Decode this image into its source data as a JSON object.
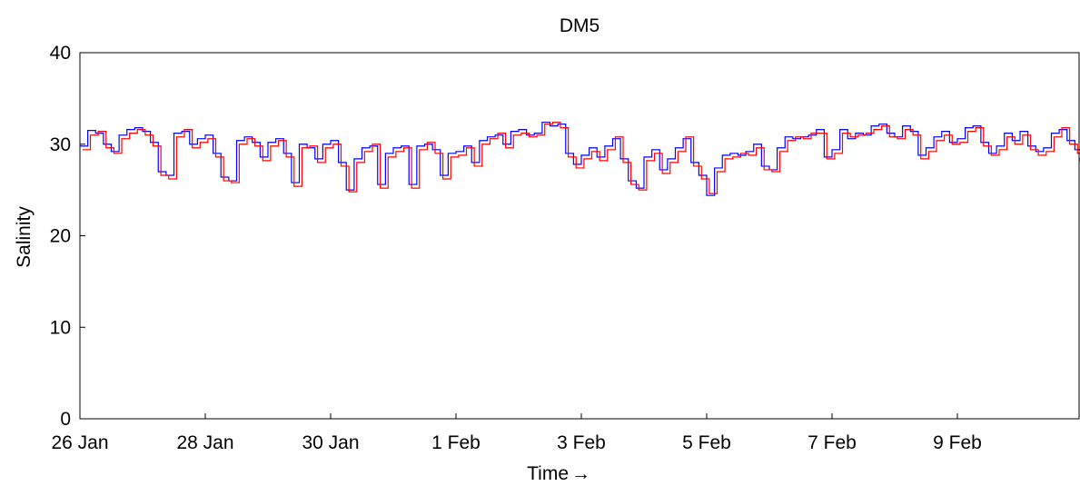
{
  "chart_data": {
    "type": "line",
    "title": "DM5",
    "xlabel": "Time",
    "xlabel_arrow": "→",
    "ylabel": "Salinity",
    "ylim": [
      0,
      40
    ],
    "yticks": [
      0,
      10,
      20,
      30,
      40
    ],
    "xlim": [
      "2000-01-26",
      "2000-02-11T22:00"
    ],
    "xticks": [
      {
        "date": "2000-01-26",
        "label": "26 Jan"
      },
      {
        "date": "2000-01-28",
        "label": "28 Jan"
      },
      {
        "date": "2000-01-30",
        "label": "30 Jan"
      },
      {
        "date": "2000-02-01",
        "label": "1 Feb"
      },
      {
        "date": "2000-02-03",
        "label": "3 Feb"
      },
      {
        "date": "2000-02-05",
        "label": "5 Feb"
      },
      {
        "date": "2000-02-07",
        "label": "7 Feb"
      },
      {
        "date": "2000-02-09",
        "label": "9 Feb"
      }
    ],
    "grid": false,
    "legend": "none",
    "series": [
      {
        "color": "#0000ff",
        "x": [
          "2000-01-26T00:00",
          "2000-01-26T03:00",
          "2000-01-26T06:00",
          "2000-01-26T09:00",
          "2000-01-26T12:00",
          "2000-01-26T15:00",
          "2000-01-26T18:00",
          "2000-01-26T21:00",
          "2000-01-27T00:00",
          "2000-01-27T03:00",
          "2000-01-27T06:00",
          "2000-01-27T09:00",
          "2000-01-27T12:00",
          "2000-01-27T15:00",
          "2000-01-27T18:00",
          "2000-01-27T21:00",
          "2000-01-28T00:00",
          "2000-01-28T03:00",
          "2000-01-28T06:00",
          "2000-01-28T09:00",
          "2000-01-28T12:00",
          "2000-01-28T15:00",
          "2000-01-28T18:00",
          "2000-01-28T21:00",
          "2000-01-29T00:00",
          "2000-01-29T03:00",
          "2000-01-29T06:00",
          "2000-01-29T09:00",
          "2000-01-29T12:00",
          "2000-01-29T15:00",
          "2000-01-29T18:00",
          "2000-01-29T21:00",
          "2000-01-30T00:00",
          "2000-01-30T03:00",
          "2000-01-30T06:00",
          "2000-01-30T09:00",
          "2000-01-30T12:00",
          "2000-01-30T15:00",
          "2000-01-30T18:00",
          "2000-01-30T21:00",
          "2000-01-31T00:00",
          "2000-01-31T03:00",
          "2000-01-31T06:00",
          "2000-01-31T09:00",
          "2000-01-31T12:00",
          "2000-01-31T15:00",
          "2000-01-31T18:00",
          "2000-01-31T21:00",
          "2000-02-01T00:00",
          "2000-02-01T03:00",
          "2000-02-01T06:00",
          "2000-02-01T09:00",
          "2000-02-01T12:00",
          "2000-02-01T15:00",
          "2000-02-01T18:00",
          "2000-02-01T21:00",
          "2000-02-02T00:00",
          "2000-02-02T03:00",
          "2000-02-02T06:00",
          "2000-02-02T09:00",
          "2000-02-02T12:00",
          "2000-02-02T15:00",
          "2000-02-02T18:00",
          "2000-02-02T21:00",
          "2000-02-03T00:00",
          "2000-02-03T03:00",
          "2000-02-03T06:00",
          "2000-02-03T09:00",
          "2000-02-03T12:00",
          "2000-02-03T15:00",
          "2000-02-03T18:00",
          "2000-02-03T21:00",
          "2000-02-04T00:00",
          "2000-02-04T03:00",
          "2000-02-04T06:00",
          "2000-02-04T09:00",
          "2000-02-04T12:00",
          "2000-02-04T15:00",
          "2000-02-04T18:00",
          "2000-02-04T21:00",
          "2000-02-05T00:00",
          "2000-02-05T03:00",
          "2000-02-05T06:00",
          "2000-02-05T09:00",
          "2000-02-05T12:00",
          "2000-02-05T15:00",
          "2000-02-05T18:00",
          "2000-02-05T21:00",
          "2000-02-06T00:00",
          "2000-02-06T03:00",
          "2000-02-06T06:00",
          "2000-02-06T09:00",
          "2000-02-06T12:00",
          "2000-02-06T15:00",
          "2000-02-06T18:00",
          "2000-02-06T21:00",
          "2000-02-07T00:00",
          "2000-02-07T03:00",
          "2000-02-07T06:00",
          "2000-02-07T09:00",
          "2000-02-07T12:00",
          "2000-02-07T15:00",
          "2000-02-07T18:00",
          "2000-02-07T21:00",
          "2000-02-08T00:00",
          "2000-02-08T03:00",
          "2000-02-08T06:00",
          "2000-02-08T09:00",
          "2000-02-08T12:00",
          "2000-02-08T15:00",
          "2000-02-08T18:00",
          "2000-02-08T21:00",
          "2000-02-09T00:00",
          "2000-02-09T03:00",
          "2000-02-09T06:00",
          "2000-02-09T09:00",
          "2000-02-09T12:00",
          "2000-02-09T15:00",
          "2000-02-09T18:00",
          "2000-02-09T21:00",
          "2000-02-10T00:00",
          "2000-02-10T03:00",
          "2000-02-10T06:00",
          "2000-02-10T09:00",
          "2000-02-10T12:00",
          "2000-02-10T15:00",
          "2000-02-10T18:00",
          "2000-02-10T21:00",
          "2000-02-11T00:00",
          "2000-02-11T03:00",
          "2000-02-11T06:00",
          "2000-02-11T09:00",
          "2000-02-11T12:00",
          "2000-02-11T15:00",
          "2000-02-11T18:00",
          "2000-02-11T21:00"
        ],
        "values": [
          29.8,
          31.5,
          31.2,
          30.0,
          29.2,
          31.0,
          31.6,
          31.8,
          31.4,
          30.2,
          27.0,
          26.6,
          31.2,
          31.4,
          30.0,
          30.6,
          31.0,
          29.0,
          26.4,
          26.0,
          30.4,
          30.8,
          30.2,
          28.6,
          30.2,
          30.6,
          29.0,
          25.8,
          30.0,
          29.6,
          28.4,
          30.0,
          30.4,
          28.0,
          25.0,
          28.4,
          29.6,
          29.8,
          25.6,
          29.0,
          29.6,
          29.8,
          25.6,
          29.8,
          30.0,
          29.4,
          26.6,
          29.0,
          29.2,
          29.8,
          28.0,
          30.4,
          30.8,
          31.0,
          30.0,
          31.4,
          31.6,
          31.0,
          31.2,
          32.4,
          32.0,
          32.2,
          29.0,
          27.8,
          28.8,
          29.6,
          28.6,
          29.8,
          30.6,
          28.4,
          26.0,
          25.2,
          28.6,
          29.4,
          27.2,
          28.4,
          29.6,
          30.6,
          28.0,
          26.6,
          24.4,
          27.4,
          28.8,
          29.0,
          28.8,
          29.2,
          30.0,
          27.6,
          27.2,
          29.6,
          30.8,
          30.6,
          30.8,
          31.0,
          31.6,
          28.6,
          29.4,
          31.6,
          30.6,
          31.2,
          31.0,
          32.0,
          32.2,
          31.2,
          30.8,
          32.0,
          31.4,
          28.8,
          29.6,
          30.8,
          31.4,
          30.2,
          30.6,
          31.8,
          32.0,
          30.2,
          29.0,
          29.8,
          31.2,
          30.4,
          31.4,
          29.8,
          29.2,
          29.6,
          31.2,
          31.6,
          30.4,
          29.4,
          30.2,
          31.2,
          31.8,
          31.0,
          30.8,
          30.4,
          30.0,
          28.4
        ]
      },
      {
        "color": "#ff0000",
        "x": [
          "2000-01-26T01:00",
          "2000-01-26T04:00",
          "2000-01-26T07:00",
          "2000-01-26T10:00",
          "2000-01-26T13:00",
          "2000-01-26T16:00",
          "2000-01-26T19:00",
          "2000-01-26T22:00",
          "2000-01-27T01:00",
          "2000-01-27T04:00",
          "2000-01-27T07:00",
          "2000-01-27T10:00",
          "2000-01-27T13:00",
          "2000-01-27T16:00",
          "2000-01-27T19:00",
          "2000-01-27T22:00",
          "2000-01-28T01:00",
          "2000-01-28T04:00",
          "2000-01-28T07:00",
          "2000-01-28T10:00",
          "2000-01-28T13:00",
          "2000-01-28T16:00",
          "2000-01-28T19:00",
          "2000-01-28T22:00",
          "2000-01-29T01:00",
          "2000-01-29T04:00",
          "2000-01-29T07:00",
          "2000-01-29T10:00",
          "2000-01-29T13:00",
          "2000-01-29T16:00",
          "2000-01-29T19:00",
          "2000-01-29T22:00",
          "2000-01-30T01:00",
          "2000-01-30T04:00",
          "2000-01-30T07:00",
          "2000-01-30T10:00",
          "2000-01-30T13:00",
          "2000-01-30T16:00",
          "2000-01-30T19:00",
          "2000-01-30T22:00",
          "2000-01-31T01:00",
          "2000-01-31T04:00",
          "2000-01-31T07:00",
          "2000-01-31T10:00",
          "2000-01-31T13:00",
          "2000-01-31T16:00",
          "2000-01-31T19:00",
          "2000-01-31T22:00",
          "2000-02-01T01:00",
          "2000-02-01T04:00",
          "2000-02-01T07:00",
          "2000-02-01T10:00",
          "2000-02-01T13:00",
          "2000-02-01T16:00",
          "2000-02-01T19:00",
          "2000-02-01T22:00",
          "2000-02-02T01:00",
          "2000-02-02T04:00",
          "2000-02-02T07:00",
          "2000-02-02T10:00",
          "2000-02-02T13:00",
          "2000-02-02T16:00",
          "2000-02-02T19:00",
          "2000-02-02T22:00",
          "2000-02-03T01:00",
          "2000-02-03T04:00",
          "2000-02-03T07:00",
          "2000-02-03T10:00",
          "2000-02-03T13:00",
          "2000-02-03T16:00",
          "2000-02-03T19:00",
          "2000-02-03T22:00",
          "2000-02-04T01:00",
          "2000-02-04T04:00",
          "2000-02-04T07:00",
          "2000-02-04T10:00",
          "2000-02-04T13:00",
          "2000-02-04T16:00",
          "2000-02-04T19:00",
          "2000-02-04T22:00",
          "2000-02-05T01:00",
          "2000-02-05T04:00",
          "2000-02-05T07:00",
          "2000-02-05T10:00",
          "2000-02-05T13:00",
          "2000-02-05T16:00",
          "2000-02-05T19:00",
          "2000-02-05T22:00",
          "2000-02-06T01:00",
          "2000-02-06T04:00",
          "2000-02-06T07:00",
          "2000-02-06T10:00",
          "2000-02-06T13:00",
          "2000-02-06T16:00",
          "2000-02-06T19:00",
          "2000-02-06T22:00",
          "2000-02-07T01:00",
          "2000-02-07T04:00",
          "2000-02-07T07:00",
          "2000-02-07T10:00",
          "2000-02-07T13:00",
          "2000-02-07T16:00",
          "2000-02-07T19:00",
          "2000-02-07T22:00",
          "2000-02-08T01:00",
          "2000-02-08T04:00",
          "2000-02-08T07:00",
          "2000-02-08T10:00",
          "2000-02-08T13:00",
          "2000-02-08T16:00",
          "2000-02-08T19:00",
          "2000-02-08T22:00",
          "2000-02-09T01:00",
          "2000-02-09T04:00",
          "2000-02-09T07:00",
          "2000-02-09T10:00",
          "2000-02-09T13:00",
          "2000-02-09T16:00",
          "2000-02-09T19:00",
          "2000-02-09T22:00",
          "2000-02-10T01:00",
          "2000-02-10T04:00",
          "2000-02-10T07:00",
          "2000-02-10T10:00",
          "2000-02-10T13:00",
          "2000-02-10T16:00",
          "2000-02-10T19:00",
          "2000-02-10T22:00",
          "2000-02-11T01:00",
          "2000-02-11T04:00",
          "2000-02-11T07:00",
          "2000-02-11T10:00",
          "2000-02-11T13:00",
          "2000-02-11T16:00",
          "2000-02-11T19:00",
          "2000-02-11T22:00"
        ],
        "values": [
          29.4,
          31.0,
          31.4,
          29.6,
          29.0,
          30.6,
          31.2,
          31.6,
          31.0,
          29.8,
          26.6,
          26.2,
          30.8,
          31.6,
          29.6,
          30.2,
          30.6,
          28.6,
          26.0,
          25.8,
          30.0,
          30.6,
          29.8,
          28.2,
          29.8,
          30.4,
          28.6,
          25.4,
          29.6,
          29.8,
          28.0,
          29.6,
          30.0,
          27.6,
          24.8,
          28.0,
          29.2,
          30.0,
          25.2,
          28.6,
          29.2,
          29.6,
          25.2,
          29.4,
          30.2,
          29.0,
          26.2,
          28.6,
          28.8,
          29.6,
          27.6,
          30.0,
          30.6,
          31.2,
          29.6,
          31.0,
          31.2,
          30.8,
          31.0,
          32.2,
          32.4,
          31.8,
          28.6,
          27.4,
          28.4,
          29.2,
          28.2,
          29.4,
          30.8,
          28.0,
          25.6,
          25.0,
          28.2,
          29.0,
          26.8,
          28.0,
          29.2,
          30.8,
          27.6,
          26.2,
          24.6,
          27.0,
          28.4,
          28.6,
          29.0,
          28.8,
          29.6,
          27.2,
          27.0,
          29.2,
          30.4,
          30.8,
          30.6,
          31.2,
          31.2,
          28.4,
          29.0,
          31.2,
          30.8,
          31.0,
          31.2,
          31.6,
          32.0,
          30.8,
          30.6,
          31.6,
          31.0,
          28.4,
          29.2,
          30.4,
          31.0,
          30.0,
          30.2,
          31.4,
          31.8,
          29.8,
          28.8,
          29.4,
          30.8,
          30.0,
          31.0,
          29.4,
          28.8,
          29.2,
          30.8,
          31.8,
          30.0,
          29.0,
          29.8,
          30.8,
          31.4,
          31.2,
          30.4,
          30.0,
          29.6,
          28.2
        ]
      }
    ]
  }
}
